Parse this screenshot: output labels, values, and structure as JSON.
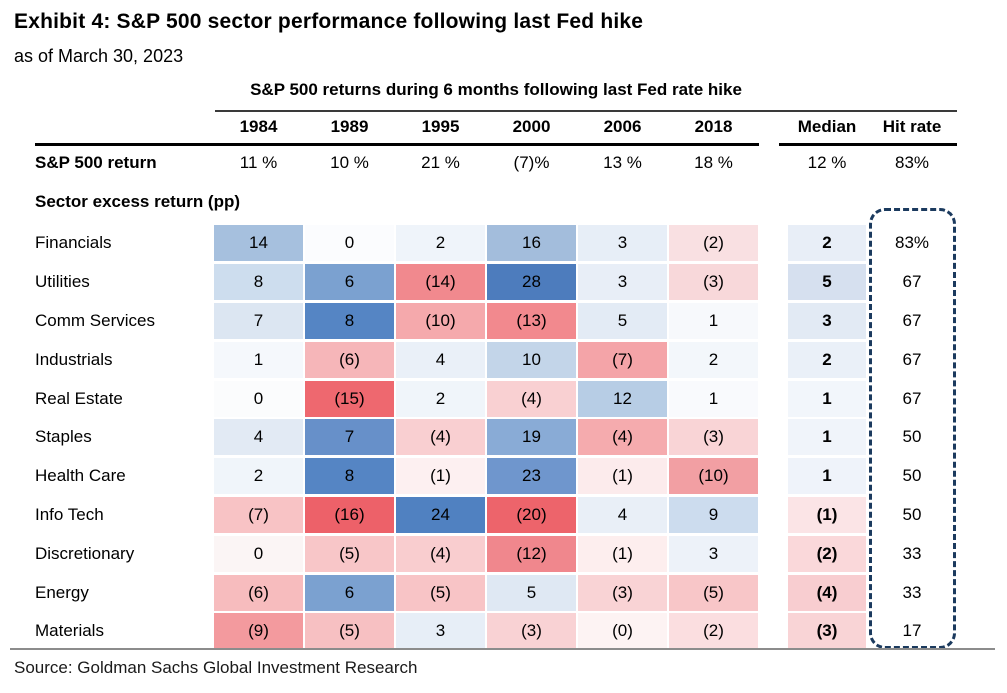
{
  "header": {
    "title": "Exhibit 4: S&P 500 sector performance following last Fed hike",
    "subtitle": "as of March 30, 2023",
    "table_title": "S&P 500 returns during 6 months following last Fed rate hike"
  },
  "columns": {
    "years": [
      "1984",
      "1989",
      "1995",
      "2000",
      "2006",
      "2018"
    ],
    "median": "Median",
    "hit_rate": "Hit rate"
  },
  "sp500_row": {
    "label": "S&P 500 return",
    "values": [
      "11 %",
      "10 %",
      "21 %",
      "(7)%",
      "13 %",
      "18 %"
    ],
    "median": "12 %",
    "hit_rate": "83%"
  },
  "section_label": "Sector excess return (pp)",
  "sectors": [
    {
      "name": "Financials",
      "cells": [
        {
          "v": "14",
          "bg": "#a6c0de"
        },
        {
          "v": "0",
          "bg": "#fbfcfe"
        },
        {
          "v": "2",
          "bg": "#eff4fa"
        },
        {
          "v": "16",
          "bg": "#a3bddc"
        },
        {
          "v": "3",
          "bg": "#e7eef7"
        },
        {
          "v": "(2)",
          "bg": "#f9e0e2"
        }
      ],
      "median": {
        "v": "2",
        "bg": "#e8eef7"
      },
      "hit": "83%"
    },
    {
      "name": "Utilities",
      "cells": [
        {
          "v": "8",
          "bg": "#cdddee"
        },
        {
          "v": "6",
          "bg": "#7ba1d0"
        },
        {
          "v": "(14)",
          "bg": "#f1898e"
        },
        {
          "v": "28",
          "bg": "#4d7cbd"
        },
        {
          "v": "3",
          "bg": "#e8eef7"
        },
        {
          "v": "(3)",
          "bg": "#f8d8da"
        }
      ],
      "median": {
        "v": "5",
        "bg": "#d6e0ef"
      },
      "hit": "67"
    },
    {
      "name": "Comm Services",
      "cells": [
        {
          "v": "7",
          "bg": "#dce6f2"
        },
        {
          "v": "8",
          "bg": "#5585c4"
        },
        {
          "v": "(10)",
          "bg": "#f5a9ac"
        },
        {
          "v": "(13)",
          "bg": "#f2898e"
        },
        {
          "v": "5",
          "bg": "#e3ebf5"
        },
        {
          "v": "1",
          "bg": "#f7f9fc"
        }
      ],
      "median": {
        "v": "3",
        "bg": "#e2eaf4"
      },
      "hit": "67"
    },
    {
      "name": "Industrials",
      "cells": [
        {
          "v": "1",
          "bg": "#f5f8fc"
        },
        {
          "v": "(6)",
          "bg": "#f6b6b9"
        },
        {
          "v": "4",
          "bg": "#eaf0f8"
        },
        {
          "v": "10",
          "bg": "#c3d5e9"
        },
        {
          "v": "(7)",
          "bg": "#f4a4a8"
        },
        {
          "v": "2",
          "bg": "#f3f7fb"
        }
      ],
      "median": {
        "v": "2",
        "bg": "#eaf0f8"
      },
      "hit": "67"
    },
    {
      "name": "Real Estate",
      "cells": [
        {
          "v": "0",
          "bg": "#fbfcfd"
        },
        {
          "v": "(15)",
          "bg": "#ee686f"
        },
        {
          "v": "2",
          "bg": "#f0f5fa"
        },
        {
          "v": "(4)",
          "bg": "#f9d0d2"
        },
        {
          "v": "12",
          "bg": "#b7cde5"
        },
        {
          "v": "1",
          "bg": "#f9fafd"
        }
      ],
      "median": {
        "v": "1",
        "bg": "#f2f6fb"
      },
      "hit": "67"
    },
    {
      "name": "Staples",
      "cells": [
        {
          "v": "4",
          "bg": "#e2eaf4"
        },
        {
          "v": "7",
          "bg": "#6790c9"
        },
        {
          "v": "(4)",
          "bg": "#f9cfd1"
        },
        {
          "v": "19",
          "bg": "#89abd6"
        },
        {
          "v": "(4)",
          "bg": "#f5abae"
        },
        {
          "v": "(3)",
          "bg": "#f9d4d6"
        }
      ],
      "median": {
        "v": "1",
        "bg": "#f0f4fa"
      },
      "hit": "50"
    },
    {
      "name": "Health Care",
      "cells": [
        {
          "v": "2",
          "bg": "#f0f5fa"
        },
        {
          "v": "8",
          "bg": "#5585c4"
        },
        {
          "v": "(1)",
          "bg": "#fdf0f1"
        },
        {
          "v": "23",
          "bg": "#6f96cd"
        },
        {
          "v": "(1)",
          "bg": "#fcebec"
        },
        {
          "v": "(10)",
          "bg": "#f29fa3"
        }
      ],
      "median": {
        "v": "1",
        "bg": "#eff3fa"
      },
      "hit": "50"
    },
    {
      "name": "Info Tech",
      "cells": [
        {
          "v": "(7)",
          "bg": "#f8c3c5"
        },
        {
          "v": "(16)",
          "bg": "#ed6169"
        },
        {
          "v": "24",
          "bg": "#5081c1"
        },
        {
          "v": "(20)",
          "bg": "#ed646b"
        },
        {
          "v": "4",
          "bg": "#e9eff7"
        },
        {
          "v": "9",
          "bg": "#ccdcee"
        }
      ],
      "median": {
        "v": "(1)",
        "bg": "#fbe4e6"
      },
      "hit": "50"
    },
    {
      "name": "Discretionary",
      "cells": [
        {
          "v": "0",
          "bg": "#fbf5f5"
        },
        {
          "v": "(5)",
          "bg": "#f8c6c8"
        },
        {
          "v": "(4)",
          "bg": "#f9cdcf"
        },
        {
          "v": "(12)",
          "bg": "#f0878d"
        },
        {
          "v": "(1)",
          "bg": "#fdeeee"
        },
        {
          "v": "3",
          "bg": "#edf2f9"
        }
      ],
      "median": {
        "v": "(2)",
        "bg": "#fad8da"
      },
      "hit": "33"
    },
    {
      "name": "Energy",
      "cells": [
        {
          "v": "(6)",
          "bg": "#f7bcbe"
        },
        {
          "v": "6",
          "bg": "#7ba1d0"
        },
        {
          "v": "(5)",
          "bg": "#f8c4c6"
        },
        {
          "v": "5",
          "bg": "#dfe8f3"
        },
        {
          "v": "(3)",
          "bg": "#f9d3d5"
        },
        {
          "v": "(5)",
          "bg": "#f8c6c8"
        }
      ],
      "median": {
        "v": "(4)",
        "bg": "#f8cdd0"
      },
      "hit": "33"
    },
    {
      "name": "Materials",
      "cells": [
        {
          "v": "(9)",
          "bg": "#f39a9e"
        },
        {
          "v": "(5)",
          "bg": "#f7c0c2"
        },
        {
          "v": "3",
          "bg": "#e7eef7"
        },
        {
          "v": "(3)",
          "bg": "#f9d2d4"
        },
        {
          "v": "(0)",
          "bg": "#fdf3f3"
        },
        {
          "v": "(2)",
          "bg": "#fbdee0"
        }
      ],
      "median": {
        "v": "(3)",
        "bg": "#f9d4d6"
      },
      "hit": "17"
    }
  ],
  "source": "Source: Goldman Sachs Global Investment Research",
  "colors": {
    "highlight_box_navy": "#1b3a5e",
    "rule_black": "#000000",
    "rule_gray": "#8c8c8c",
    "heat_blue_max": "#4d7cbd",
    "heat_red_max": "#ed6169"
  },
  "chart_data": {
    "type": "heatmap",
    "title": "S&P 500 returns during 6 months following last Fed rate hike",
    "subtitle": "as of March 30, 2023",
    "columns": [
      "1984",
      "1989",
      "1995",
      "2000",
      "2006",
      "2018",
      "Median",
      "Hit rate"
    ],
    "sp500_return_pct": {
      "values": [
        11,
        10,
        21,
        -7,
        13,
        18
      ],
      "median": 12,
      "hit_rate_pct": 83
    },
    "unit": "pp (sector excess return)",
    "rows": [
      {
        "sector": "Financials",
        "values": [
          14,
          0,
          2,
          16,
          3,
          -2
        ],
        "median": 2,
        "hit_rate_pct": 83
      },
      {
        "sector": "Utilities",
        "values": [
          8,
          6,
          -14,
          28,
          3,
          -3
        ],
        "median": 5,
        "hit_rate_pct": 67
      },
      {
        "sector": "Comm Services",
        "values": [
          7,
          8,
          -10,
          -13,
          5,
          1
        ],
        "median": 3,
        "hit_rate_pct": 67
      },
      {
        "sector": "Industrials",
        "values": [
          1,
          -6,
          4,
          10,
          -7,
          2
        ],
        "median": 2,
        "hit_rate_pct": 67
      },
      {
        "sector": "Real Estate",
        "values": [
          0,
          -15,
          2,
          -4,
          12,
          1
        ],
        "median": 1,
        "hit_rate_pct": 67
      },
      {
        "sector": "Staples",
        "values": [
          4,
          7,
          -4,
          19,
          -4,
          -3
        ],
        "median": 1,
        "hit_rate_pct": 50
      },
      {
        "sector": "Health Care",
        "values": [
          2,
          8,
          -1,
          23,
          -1,
          -10
        ],
        "median": 1,
        "hit_rate_pct": 50
      },
      {
        "sector": "Info Tech",
        "values": [
          -7,
          -16,
          24,
          -20,
          4,
          9
        ],
        "median": -1,
        "hit_rate_pct": 50
      },
      {
        "sector": "Discretionary",
        "values": [
          0,
          -5,
          -4,
          -12,
          -1,
          3
        ],
        "median": -2,
        "hit_rate_pct": 33
      },
      {
        "sector": "Energy",
        "values": [
          -6,
          6,
          -5,
          5,
          -3,
          -5
        ],
        "median": -4,
        "hit_rate_pct": 33
      },
      {
        "sector": "Materials",
        "values": [
          -9,
          -5,
          3,
          -3,
          0,
          -2
        ],
        "median": -3,
        "hit_rate_pct": 17
      }
    ],
    "legend": "blue = positive excess return, red = negative excess return (color intensity scales with magnitude)",
    "annotations": [
      "dashed navy rounded box highlights the Hit rate column"
    ]
  }
}
